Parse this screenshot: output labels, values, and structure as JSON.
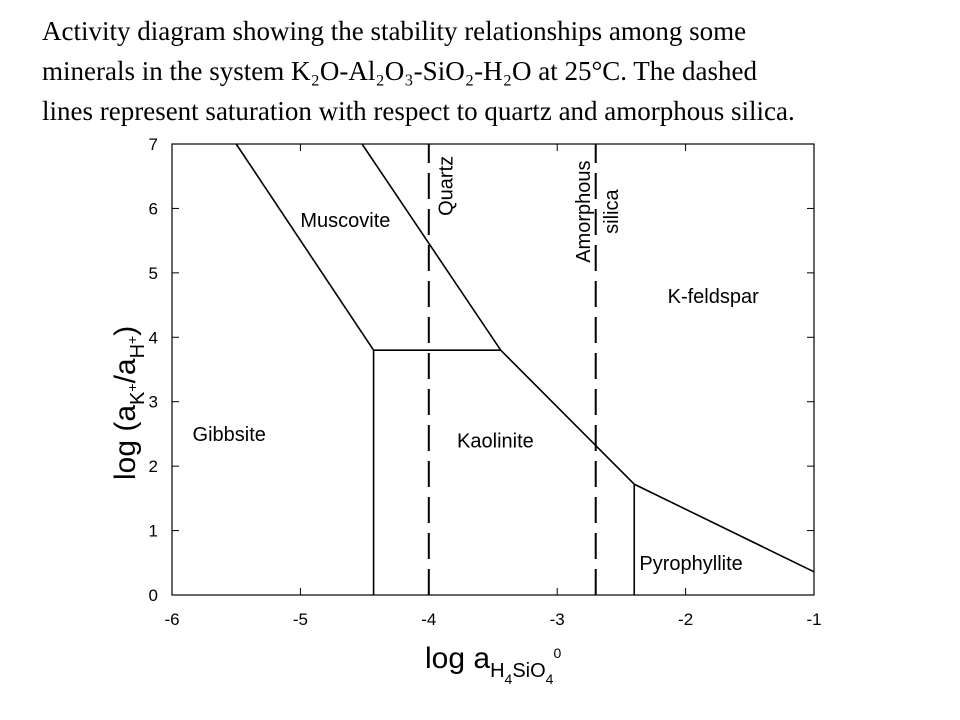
{
  "chart_data": {
    "type": "line",
    "title": [
      "Activity diagram showing the stability relationships among some",
      "minerals in the system K₂O-Al₂O₃-SiO₂-H₂O at 25°C. The dashed",
      "lines represent saturation with respect to quartz and amorphous silica."
    ],
    "x_label": [
      {
        "text": "log a"
      },
      {
        "text": "H",
        "style": "sub"
      },
      {
        "text": "4",
        "style": "sub2"
      },
      {
        "text": "SiO",
        "style": "sub"
      },
      {
        "text": "4",
        "style": "sub2"
      },
      {
        "text": "0",
        "style": "sup"
      }
    ],
    "y_label": [
      {
        "text": "log (a"
      },
      {
        "text": "K",
        "style": "sub"
      },
      {
        "text": "+",
        "style": "subsup"
      },
      {
        "text": "/a"
      },
      {
        "text": "H",
        "style": "sub"
      },
      {
        "text": "+",
        "style": "subsup"
      },
      {
        "text": ")"
      }
    ],
    "xlim": [
      -6,
      -1
    ],
    "ylim": [
      0,
      7
    ],
    "xticks": [
      -6,
      -5,
      -4,
      -3,
      -2,
      -1
    ],
    "yticks": [
      0,
      1,
      2,
      3,
      4,
      5,
      6,
      7
    ],
    "color": "#000000",
    "lines": [
      {
        "x": [
          -5.5,
          -4.43
        ],
        "y": [
          7,
          3.8
        ],
        "dashed": false
      },
      {
        "x": [
          -4.43,
          -3.44
        ],
        "y": [
          3.8,
          3.8
        ],
        "dashed": false
      },
      {
        "x": [
          -4.43,
          -4.43
        ],
        "y": [
          0,
          3.8
        ],
        "dashed": false
      },
      {
        "x": [
          -4.52,
          -3.44,
          -2.4,
          -1
        ],
        "y": [
          7,
          3.8,
          1.72,
          0.36
        ],
        "dashed": false
      },
      {
        "x": [
          -2.4,
          -2.4
        ],
        "y": [
          0,
          1.72
        ],
        "dashed": false
      },
      {
        "x": [
          -4.0,
          -4.0
        ],
        "y": [
          0,
          7
        ],
        "dashed": true
      },
      {
        "x": [
          -2.7,
          -2.7
        ],
        "y": [
          0,
          7
        ],
        "dashed": true
      }
    ],
    "annotations": [
      {
        "text": "Gibbsite",
        "x": -5.84,
        "y": 2.5,
        "vertical": false
      },
      {
        "text": "Muscovite",
        "x": -5.0,
        "y": 5.82,
        "vertical": false
      },
      {
        "text": "Kaolinite",
        "x": -3.78,
        "y": 2.4,
        "vertical": false
      },
      {
        "text": "K-feldspar",
        "x": -2.14,
        "y": 4.64,
        "vertical": false
      },
      {
        "text": "Pyrophyllite",
        "x": -2.36,
        "y": 0.5,
        "vertical": false
      },
      {
        "text": "Quartz",
        "x": -3.87,
        "y": 6.35,
        "vertical": true
      },
      {
        "text": "Amorphous",
        "x": -2.8,
        "y": 5.95,
        "vertical": true
      },
      {
        "text": "silica",
        "x": -2.58,
        "y": 5.95,
        "vertical": true
      }
    ]
  }
}
